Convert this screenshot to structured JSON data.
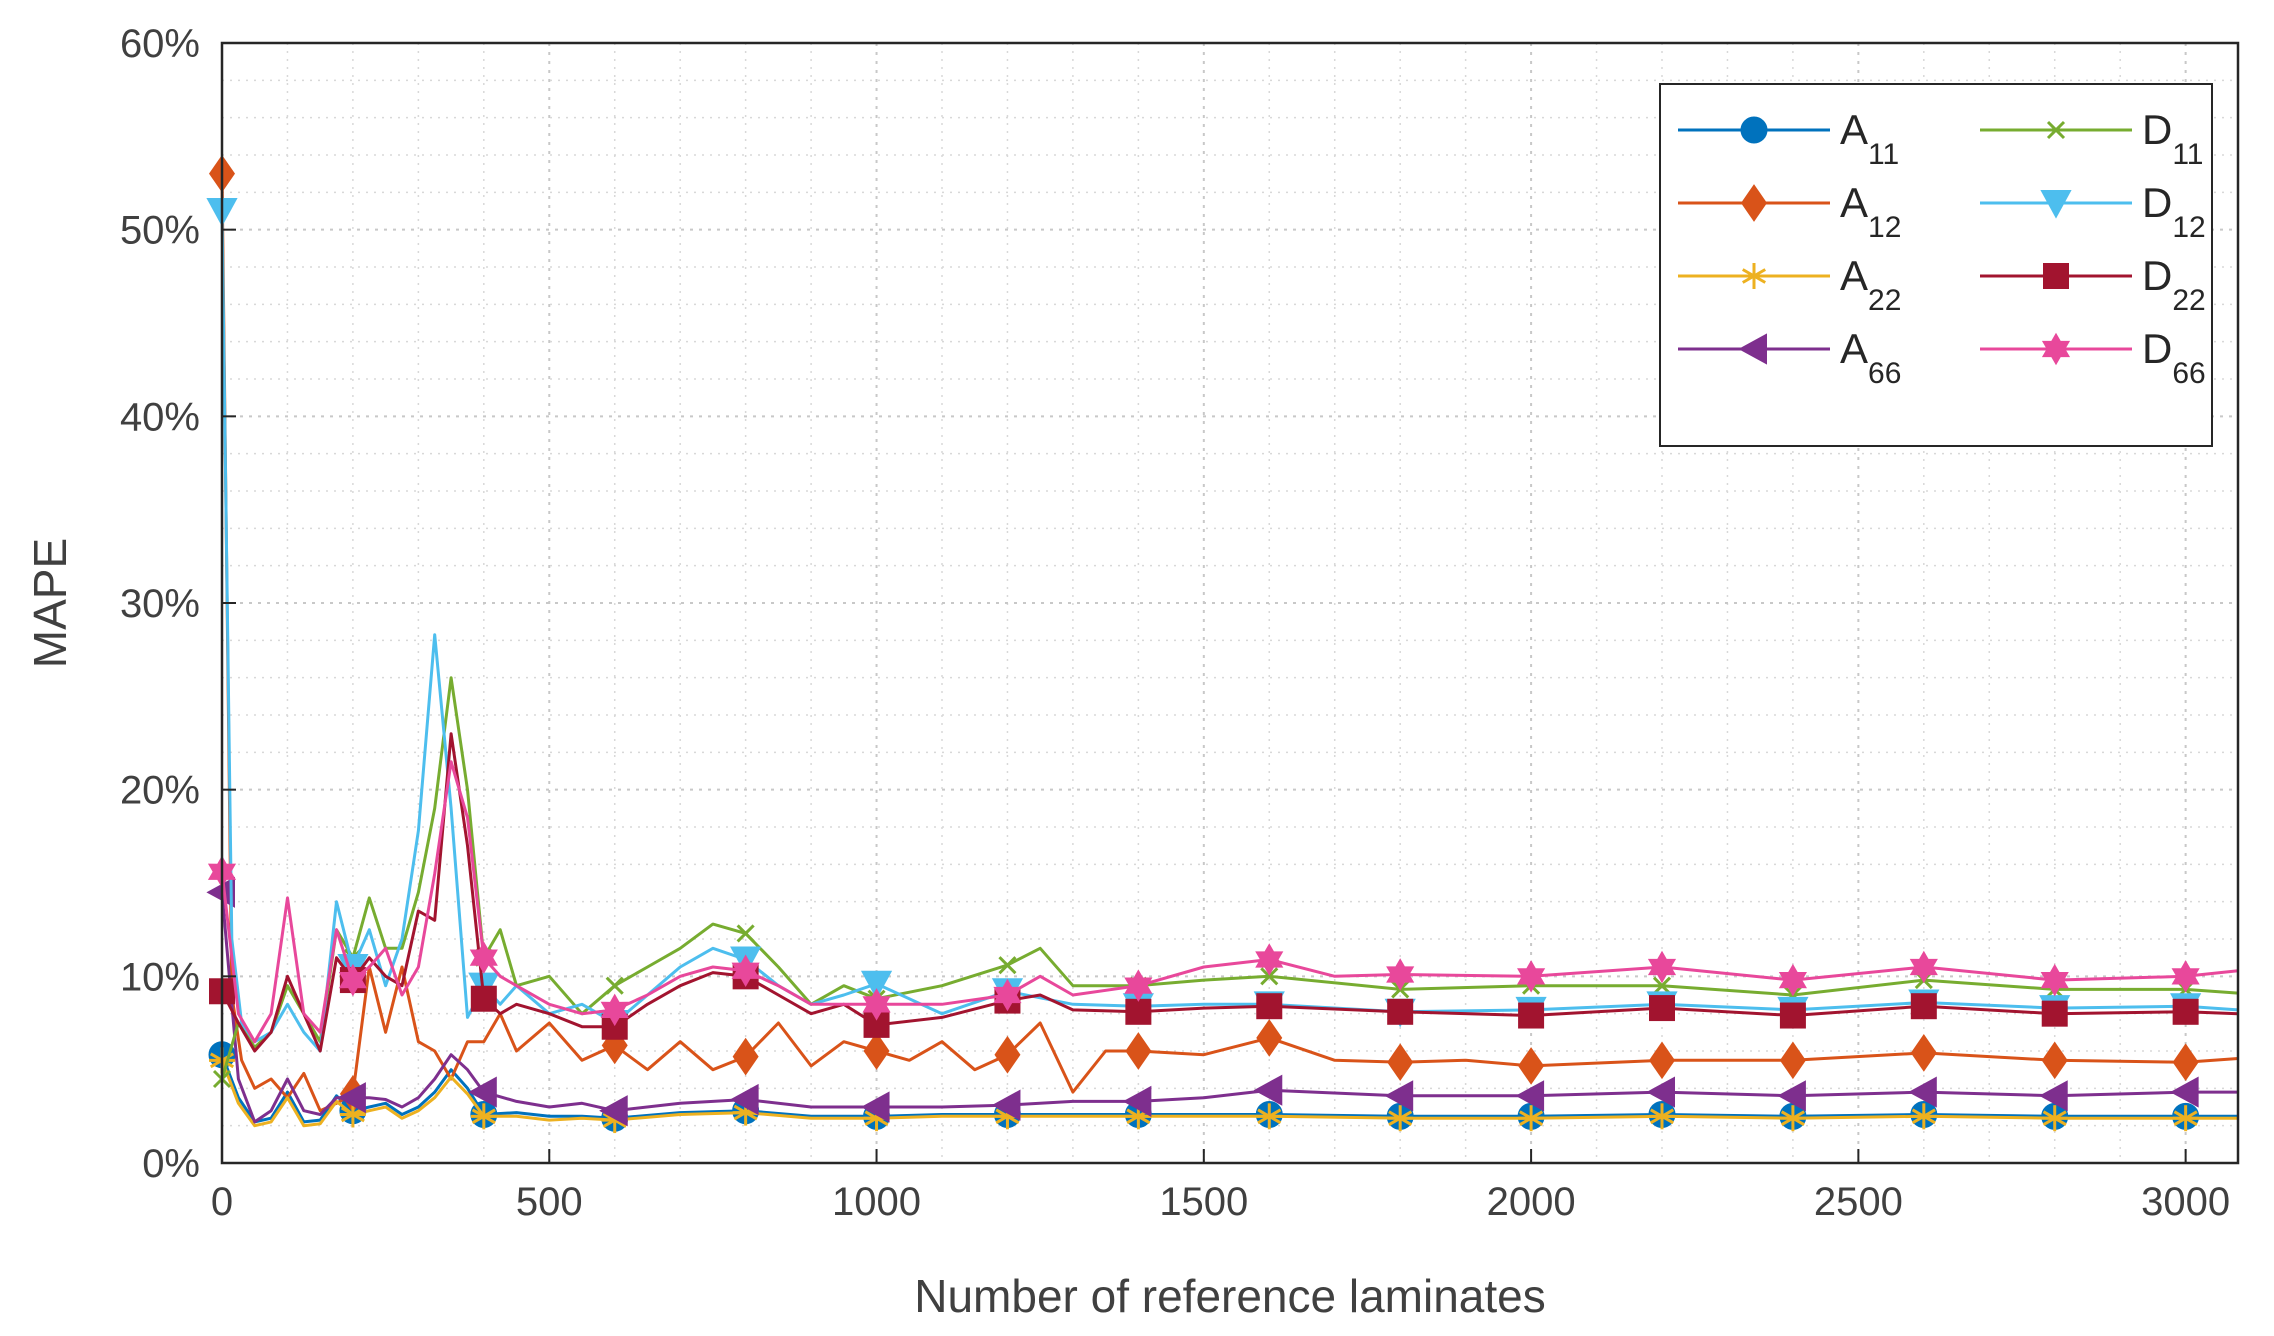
{
  "chart_data": {
    "type": "line",
    "xlabel": "Number of reference laminates",
    "ylabel": "MAPE",
    "xlim": [
      0,
      3080
    ],
    "ylim": [
      0,
      60
    ],
    "xticks": [
      0,
      500,
      1000,
      1500,
      2000,
      2500,
      3000
    ],
    "xtick_labels": [
      "0",
      "500",
      "1000",
      "1500",
      "2000",
      "2500",
      "3000"
    ],
    "yticks": [
      0,
      10,
      20,
      30,
      40,
      50,
      60
    ],
    "ytick_labels": [
      "0%",
      "10%",
      "20%",
      "30%",
      "40%",
      "50%",
      "60%"
    ],
    "grid": "on",
    "legend_position": "top-right",
    "series": [
      {
        "name": "A",
        "sub": "11",
        "color": "#0072BD",
        "marker": "circle",
        "x": [
          0,
          25,
          50,
          75,
          100,
          125,
          150,
          175,
          200,
          225,
          250,
          275,
          300,
          325,
          350,
          375,
          400,
          450,
          500,
          550,
          600,
          700,
          800,
          900,
          1000,
          1100,
          1200,
          1300,
          1400,
          1500,
          1600,
          1800,
          2000,
          2200,
          2400,
          2600,
          2800,
          3000,
          3080
        ],
        "y": [
          5.8,
          3.5,
          2.2,
          2.4,
          3.8,
          2.2,
          2.3,
          3.6,
          2.8,
          3.0,
          3.2,
          2.6,
          3.0,
          3.8,
          5.0,
          4.0,
          2.6,
          2.7,
          2.5,
          2.5,
          2.4,
          2.7,
          2.8,
          2.5,
          2.5,
          2.6,
          2.6,
          2.6,
          2.6,
          2.6,
          2.6,
          2.5,
          2.5,
          2.6,
          2.5,
          2.6,
          2.5,
          2.5,
          2.5
        ],
        "marker_x": [
          0,
          200,
          400,
          600,
          800,
          1000,
          1200,
          1400,
          1600,
          1800,
          2000,
          2200,
          2400,
          2600,
          2800,
          3000
        ]
      },
      {
        "name": "A",
        "sub": "12",
        "color": "#D95319",
        "marker": "diamond",
        "x": [
          0,
          15,
          30,
          50,
          75,
          100,
          125,
          150,
          175,
          200,
          225,
          250,
          275,
          300,
          325,
          350,
          375,
          400,
          425,
          450,
          500,
          550,
          600,
          650,
          700,
          750,
          800,
          850,
          900,
          950,
          1000,
          1050,
          1100,
          1150,
          1200,
          1250,
          1300,
          1350,
          1400,
          1500,
          1600,
          1700,
          1800,
          1900,
          2000,
          2200,
          2400,
          2600,
          2800,
          3000,
          3080
        ],
        "y": [
          53,
          9,
          5.5,
          4.0,
          4.5,
          3.5,
          4.8,
          2.8,
          3.2,
          3.7,
          10.5,
          7.0,
          10.5,
          6.5,
          6.0,
          4.5,
          6.5,
          6.5,
          8.0,
          6.0,
          7.5,
          5.5,
          6.3,
          5.0,
          6.5,
          5.0,
          5.7,
          7.5,
          5.2,
          6.5,
          6.0,
          5.5,
          6.5,
          5.0,
          5.8,
          7.5,
          3.8,
          6.0,
          6.0,
          5.8,
          6.7,
          5.5,
          5.4,
          5.5,
          5.2,
          5.5,
          5.5,
          5.9,
          5.5,
          5.4,
          5.6
        ],
        "marker_x": [
          0,
          200,
          600,
          800,
          1000,
          1200,
          1400,
          1600,
          1800,
          2000,
          2200,
          2400,
          2600,
          2800,
          3000
        ]
      },
      {
        "name": "A",
        "sub": "22",
        "color": "#EDB120",
        "marker": "asterisk",
        "x": [
          0,
          25,
          50,
          75,
          100,
          125,
          150,
          175,
          200,
          225,
          250,
          275,
          300,
          325,
          350,
          375,
          400,
          450,
          500,
          550,
          600,
          700,
          800,
          900,
          1000,
          1100,
          1200,
          1300,
          1400,
          1500,
          1600,
          1800,
          2000,
          2200,
          2400,
          2600,
          2800,
          3000,
          3080
        ],
        "y": [
          5.5,
          3.2,
          2.0,
          2.2,
          3.5,
          2.0,
          2.1,
          3.3,
          2.6,
          2.8,
          3.0,
          2.4,
          2.8,
          3.5,
          4.6,
          3.7,
          2.5,
          2.5,
          2.3,
          2.4,
          2.3,
          2.6,
          2.7,
          2.4,
          2.4,
          2.5,
          2.5,
          2.5,
          2.5,
          2.5,
          2.5,
          2.4,
          2.4,
          2.5,
          2.4,
          2.5,
          2.4,
          2.4,
          2.4
        ],
        "marker_x": [
          0,
          200,
          400,
          600,
          800,
          1000,
          1200,
          1400,
          1600,
          1800,
          2000,
          2200,
          2400,
          2600,
          2800,
          3000
        ]
      },
      {
        "name": "A",
        "sub": "66",
        "color": "#7E2F8E",
        "marker": "triangle-left",
        "x": [
          0,
          25,
          50,
          75,
          100,
          125,
          150,
          175,
          200,
          225,
          250,
          275,
          300,
          325,
          350,
          375,
          400,
          450,
          500,
          550,
          600,
          700,
          800,
          900,
          1000,
          1100,
          1200,
          1300,
          1400,
          1500,
          1600,
          1800,
          2000,
          2200,
          2400,
          2600,
          2800,
          3000,
          3080
        ],
        "y": [
          14.5,
          4.5,
          2.2,
          2.8,
          4.5,
          2.8,
          2.6,
          3.5,
          3.5,
          3.5,
          3.4,
          3.0,
          3.5,
          4.5,
          5.8,
          5.0,
          3.8,
          3.3,
          3.0,
          3.2,
          2.8,
          3.2,
          3.4,
          3.0,
          3.0,
          3.0,
          3.1,
          3.3,
          3.3,
          3.5,
          3.9,
          3.6,
          3.6,
          3.8,
          3.6,
          3.8,
          3.6,
          3.8,
          3.8
        ],
        "marker_x": [
          0,
          200,
          400,
          600,
          800,
          1000,
          1200,
          1400,
          1600,
          1800,
          2000,
          2200,
          2400,
          2600,
          2800,
          3000
        ]
      },
      {
        "name": "D",
        "sub": "11",
        "color": "#77AC30",
        "marker": "x",
        "x": [
          0,
          25,
          50,
          75,
          100,
          125,
          150,
          175,
          200,
          225,
          250,
          275,
          300,
          325,
          350,
          375,
          400,
          425,
          450,
          500,
          550,
          600,
          650,
          700,
          750,
          800,
          850,
          900,
          950,
          1000,
          1100,
          1200,
          1250,
          1300,
          1400,
          1500,
          1600,
          1800,
          2000,
          2200,
          2400,
          2600,
          2800,
          3000,
          3080
        ],
        "y": [
          4.5,
          7.5,
          6.2,
          7.0,
          9.5,
          8.0,
          6.5,
          12.5,
          11.0,
          14.2,
          11.5,
          11.5,
          14.5,
          19.0,
          26.0,
          20.0,
          11.0,
          12.5,
          9.5,
          10.0,
          8.0,
          9.5,
          10.5,
          11.5,
          12.8,
          12.3,
          10.5,
          8.5,
          9.5,
          8.8,
          9.5,
          10.6,
          11.5,
          9.5,
          9.5,
          9.8,
          10.0,
          9.3,
          9.5,
          9.5,
          9.0,
          9.8,
          9.3,
          9.3,
          9.1
        ],
        "marker_x": [
          0,
          200,
          400,
          600,
          800,
          1000,
          1200,
          1400,
          1600,
          1800,
          2000,
          2200,
          2400,
          2600,
          2800,
          3000
        ]
      },
      {
        "name": "D",
        "sub": "12",
        "color": "#4DBEEE",
        "marker": "triangle-down",
        "x": [
          0,
          15,
          30,
          50,
          75,
          100,
          125,
          150,
          175,
          200,
          225,
          250,
          275,
          300,
          325,
          350,
          375,
          400,
          425,
          450,
          500,
          550,
          600,
          650,
          700,
          750,
          800,
          850,
          900,
          950,
          1000,
          1100,
          1200,
          1300,
          1400,
          1500,
          1600,
          1800,
          2000,
          2200,
          2400,
          2600,
          2800,
          3000,
          3080
        ],
        "y": [
          51,
          12,
          7.5,
          6.5,
          7.0,
          8.5,
          7.0,
          6.0,
          14.0,
          10.5,
          12.5,
          9.5,
          12.0,
          17.8,
          28.3,
          19.0,
          7.8,
          9.5,
          8.5,
          9.5,
          8.0,
          8.5,
          7.5,
          9.0,
          10.5,
          11.5,
          10.9,
          9.5,
          8.5,
          9.0,
          9.6,
          8.0,
          9.2,
          8.5,
          8.4,
          8.5,
          8.5,
          8.1,
          8.2,
          8.5,
          8.2,
          8.6,
          8.3,
          8.4,
          8.2
        ],
        "marker_x": [
          0,
          200,
          400,
          600,
          800,
          1000,
          1200,
          1400,
          1600,
          1800,
          2000,
          2200,
          2400,
          2600,
          2800,
          3000
        ]
      },
      {
        "name": "D",
        "sub": "22",
        "color": "#A2142F",
        "marker": "square",
        "x": [
          0,
          25,
          50,
          75,
          100,
          125,
          150,
          175,
          200,
          225,
          250,
          275,
          300,
          325,
          350,
          375,
          400,
          425,
          450,
          500,
          550,
          600,
          650,
          700,
          750,
          800,
          850,
          900,
          950,
          1000,
          1100,
          1200,
          1250,
          1300,
          1400,
          1500,
          1600,
          1800,
          2000,
          2200,
          2400,
          2600,
          2800,
          3000,
          3080
        ],
        "y": [
          9.2,
          7.5,
          6.0,
          7.0,
          10.0,
          8.0,
          6.0,
          11.0,
          9.8,
          11.0,
          10.0,
          9.5,
          13.5,
          13.0,
          23.0,
          17.0,
          8.8,
          8.0,
          8.5,
          8.0,
          7.3,
          7.3,
          8.5,
          9.5,
          10.2,
          10.0,
          9.0,
          8.0,
          8.5,
          7.4,
          7.8,
          8.7,
          9.0,
          8.2,
          8.1,
          8.3,
          8.4,
          8.1,
          7.9,
          8.3,
          7.9,
          8.4,
          8.0,
          8.1,
          8.0
        ],
        "marker_x": [
          0,
          200,
          400,
          600,
          800,
          1000,
          1200,
          1400,
          1600,
          1800,
          2000,
          2200,
          2400,
          2600,
          2800,
          3000
        ]
      },
      {
        "name": "D",
        "sub": "66",
        "color": "#E8489B",
        "marker": "hexagram",
        "x": [
          0,
          25,
          50,
          75,
          100,
          125,
          150,
          175,
          200,
          225,
          250,
          275,
          300,
          325,
          350,
          375,
          400,
          425,
          450,
          500,
          550,
          600,
          650,
          700,
          750,
          800,
          850,
          900,
          950,
          1000,
          1100,
          1200,
          1250,
          1300,
          1400,
          1500,
          1600,
          1700,
          1800,
          2000,
          2200,
          2400,
          2600,
          2800,
          3000,
          3080
        ],
        "y": [
          15.6,
          8.0,
          6.5,
          8.0,
          14.2,
          8.0,
          7.0,
          12.5,
          9.8,
          10.5,
          11.5,
          9.0,
          10.5,
          15.5,
          21.5,
          18.5,
          11.0,
          10.0,
          9.5,
          8.5,
          8.0,
          8.2,
          9.0,
          10.0,
          10.5,
          10.3,
          9.5,
          8.5,
          8.5,
          8.5,
          8.5,
          9.0,
          10.0,
          9.0,
          9.5,
          10.5,
          10.9,
          10.0,
          10.1,
          10.0,
          10.5,
          9.8,
          10.5,
          9.8,
          10.0,
          10.3
        ],
        "marker_x": [
          0,
          200,
          400,
          600,
          800,
          1000,
          1200,
          1400,
          1600,
          1800,
          2000,
          2200,
          2400,
          2600,
          2800,
          3000
        ]
      }
    ]
  }
}
